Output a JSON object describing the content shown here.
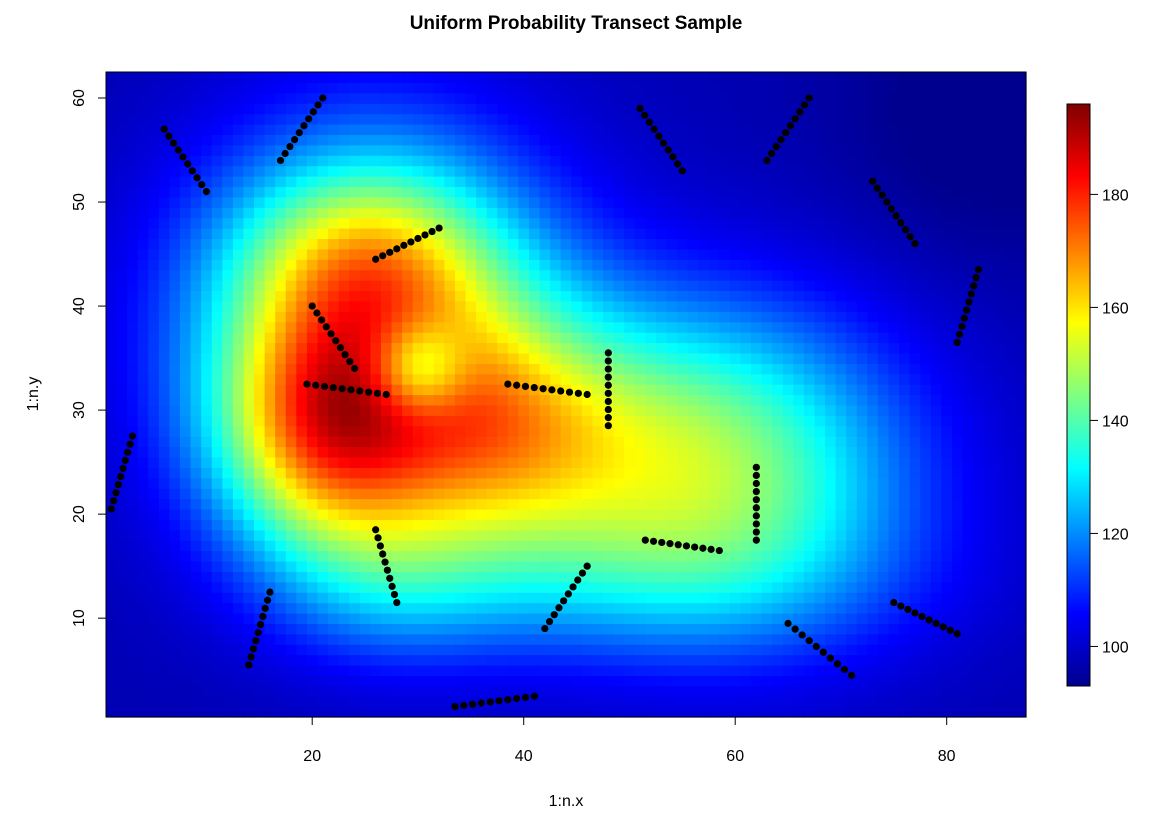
{
  "chart_data": {
    "type": "heatmap",
    "title": "Uniform Probability Transect Sample",
    "xlabel": "1:n.x",
    "ylabel": "1:n.y",
    "xlim": [
      0.5,
      87.5
    ],
    "ylim": [
      0.5,
      62.5
    ],
    "x_ticks": [
      20,
      40,
      60,
      80
    ],
    "y_ticks": [
      10,
      20,
      30,
      40,
      50,
      60
    ],
    "colorbar": {
      "min": 93,
      "max": 196,
      "ticks": [
        100,
        120,
        140,
        160,
        180
      ],
      "palette": "jet"
    },
    "surface": {
      "base": 97,
      "bumps": [
        {
          "cx": 26,
          "cy": 37,
          "amp": 58,
          "sx": 12,
          "sy": 13
        },
        {
          "cx": 21,
          "cy": 28,
          "amp": 42,
          "sx": 7,
          "sy": 8
        },
        {
          "cx": 25,
          "cy": 45,
          "amp": 22,
          "sx": 8,
          "sy": 6
        },
        {
          "cx": 37,
          "cy": 28,
          "amp": 24,
          "sx": 8,
          "sy": 7
        },
        {
          "cx": 50,
          "cy": 26,
          "amp": 32,
          "sx": 13,
          "sy": 10
        },
        {
          "cx": 62,
          "cy": 24,
          "amp": 26,
          "sx": 12,
          "sy": 11
        },
        {
          "cx": 50,
          "cy": 14,
          "amp": 12,
          "sx": 18,
          "sy": 6
        },
        {
          "cx": 28,
          "cy": 14,
          "amp": 14,
          "sx": 8,
          "sy": 6
        },
        {
          "cx": 30,
          "cy": 34,
          "amp": -28,
          "sx": 3.2,
          "sy": 3.2
        },
        {
          "cx": 84,
          "cy": 58,
          "amp": -6,
          "sx": 10,
          "sy": 10
        }
      ]
    },
    "transects": [
      {
        "x0": 17,
        "y0": 54,
        "x1": 21,
        "y1": 60
      },
      {
        "x0": 6,
        "y0": 57,
        "x1": 10,
        "y1": 51
      },
      {
        "x0": 26,
        "y0": 44.5,
        "x1": 32,
        "y1": 47.5
      },
      {
        "x0": 20,
        "y0": 40,
        "x1": 24,
        "y1": 34
      },
      {
        "x0": 19.5,
        "y0": 32.5,
        "x1": 27,
        "y1": 31.5
      },
      {
        "x0": 38.5,
        "y0": 32.5,
        "x1": 46,
        "y1": 31.5
      },
      {
        "x0": 48,
        "y0": 35.5,
        "x1": 48,
        "y1": 28.5
      },
      {
        "x0": 51,
        "y0": 59,
        "x1": 55,
        "y1": 53
      },
      {
        "x0": 63,
        "y0": 54,
        "x1": 67,
        "y1": 60
      },
      {
        "x0": 73,
        "y0": 52,
        "x1": 77,
        "y1": 46
      },
      {
        "x0": 81,
        "y0": 36.5,
        "x1": 83,
        "y1": 43.5
      },
      {
        "x0": 1,
        "y0": 20.5,
        "x1": 3,
        "y1": 27.5
      },
      {
        "x0": 26,
        "y0": 18.5,
        "x1": 28,
        "y1": 11.5
      },
      {
        "x0": 62,
        "y0": 24.5,
        "x1": 62,
        "y1": 17.5
      },
      {
        "x0": 51.5,
        "y0": 17.5,
        "x1": 58.5,
        "y1": 16.5
      },
      {
        "x0": 14,
        "y0": 5.5,
        "x1": 16,
        "y1": 12.5
      },
      {
        "x0": 42,
        "y0": 9,
        "x1": 46,
        "y1": 15
      },
      {
        "x0": 33.5,
        "y0": 1.5,
        "x1": 41,
        "y1": 2.5
      },
      {
        "x0": 65,
        "y0": 9.5,
        "x1": 71,
        "y1": 4.5
      },
      {
        "x0": 75,
        "y0": 11.5,
        "x1": 81,
        "y1": 8.5
      }
    ],
    "points_per_transect": 10
  }
}
